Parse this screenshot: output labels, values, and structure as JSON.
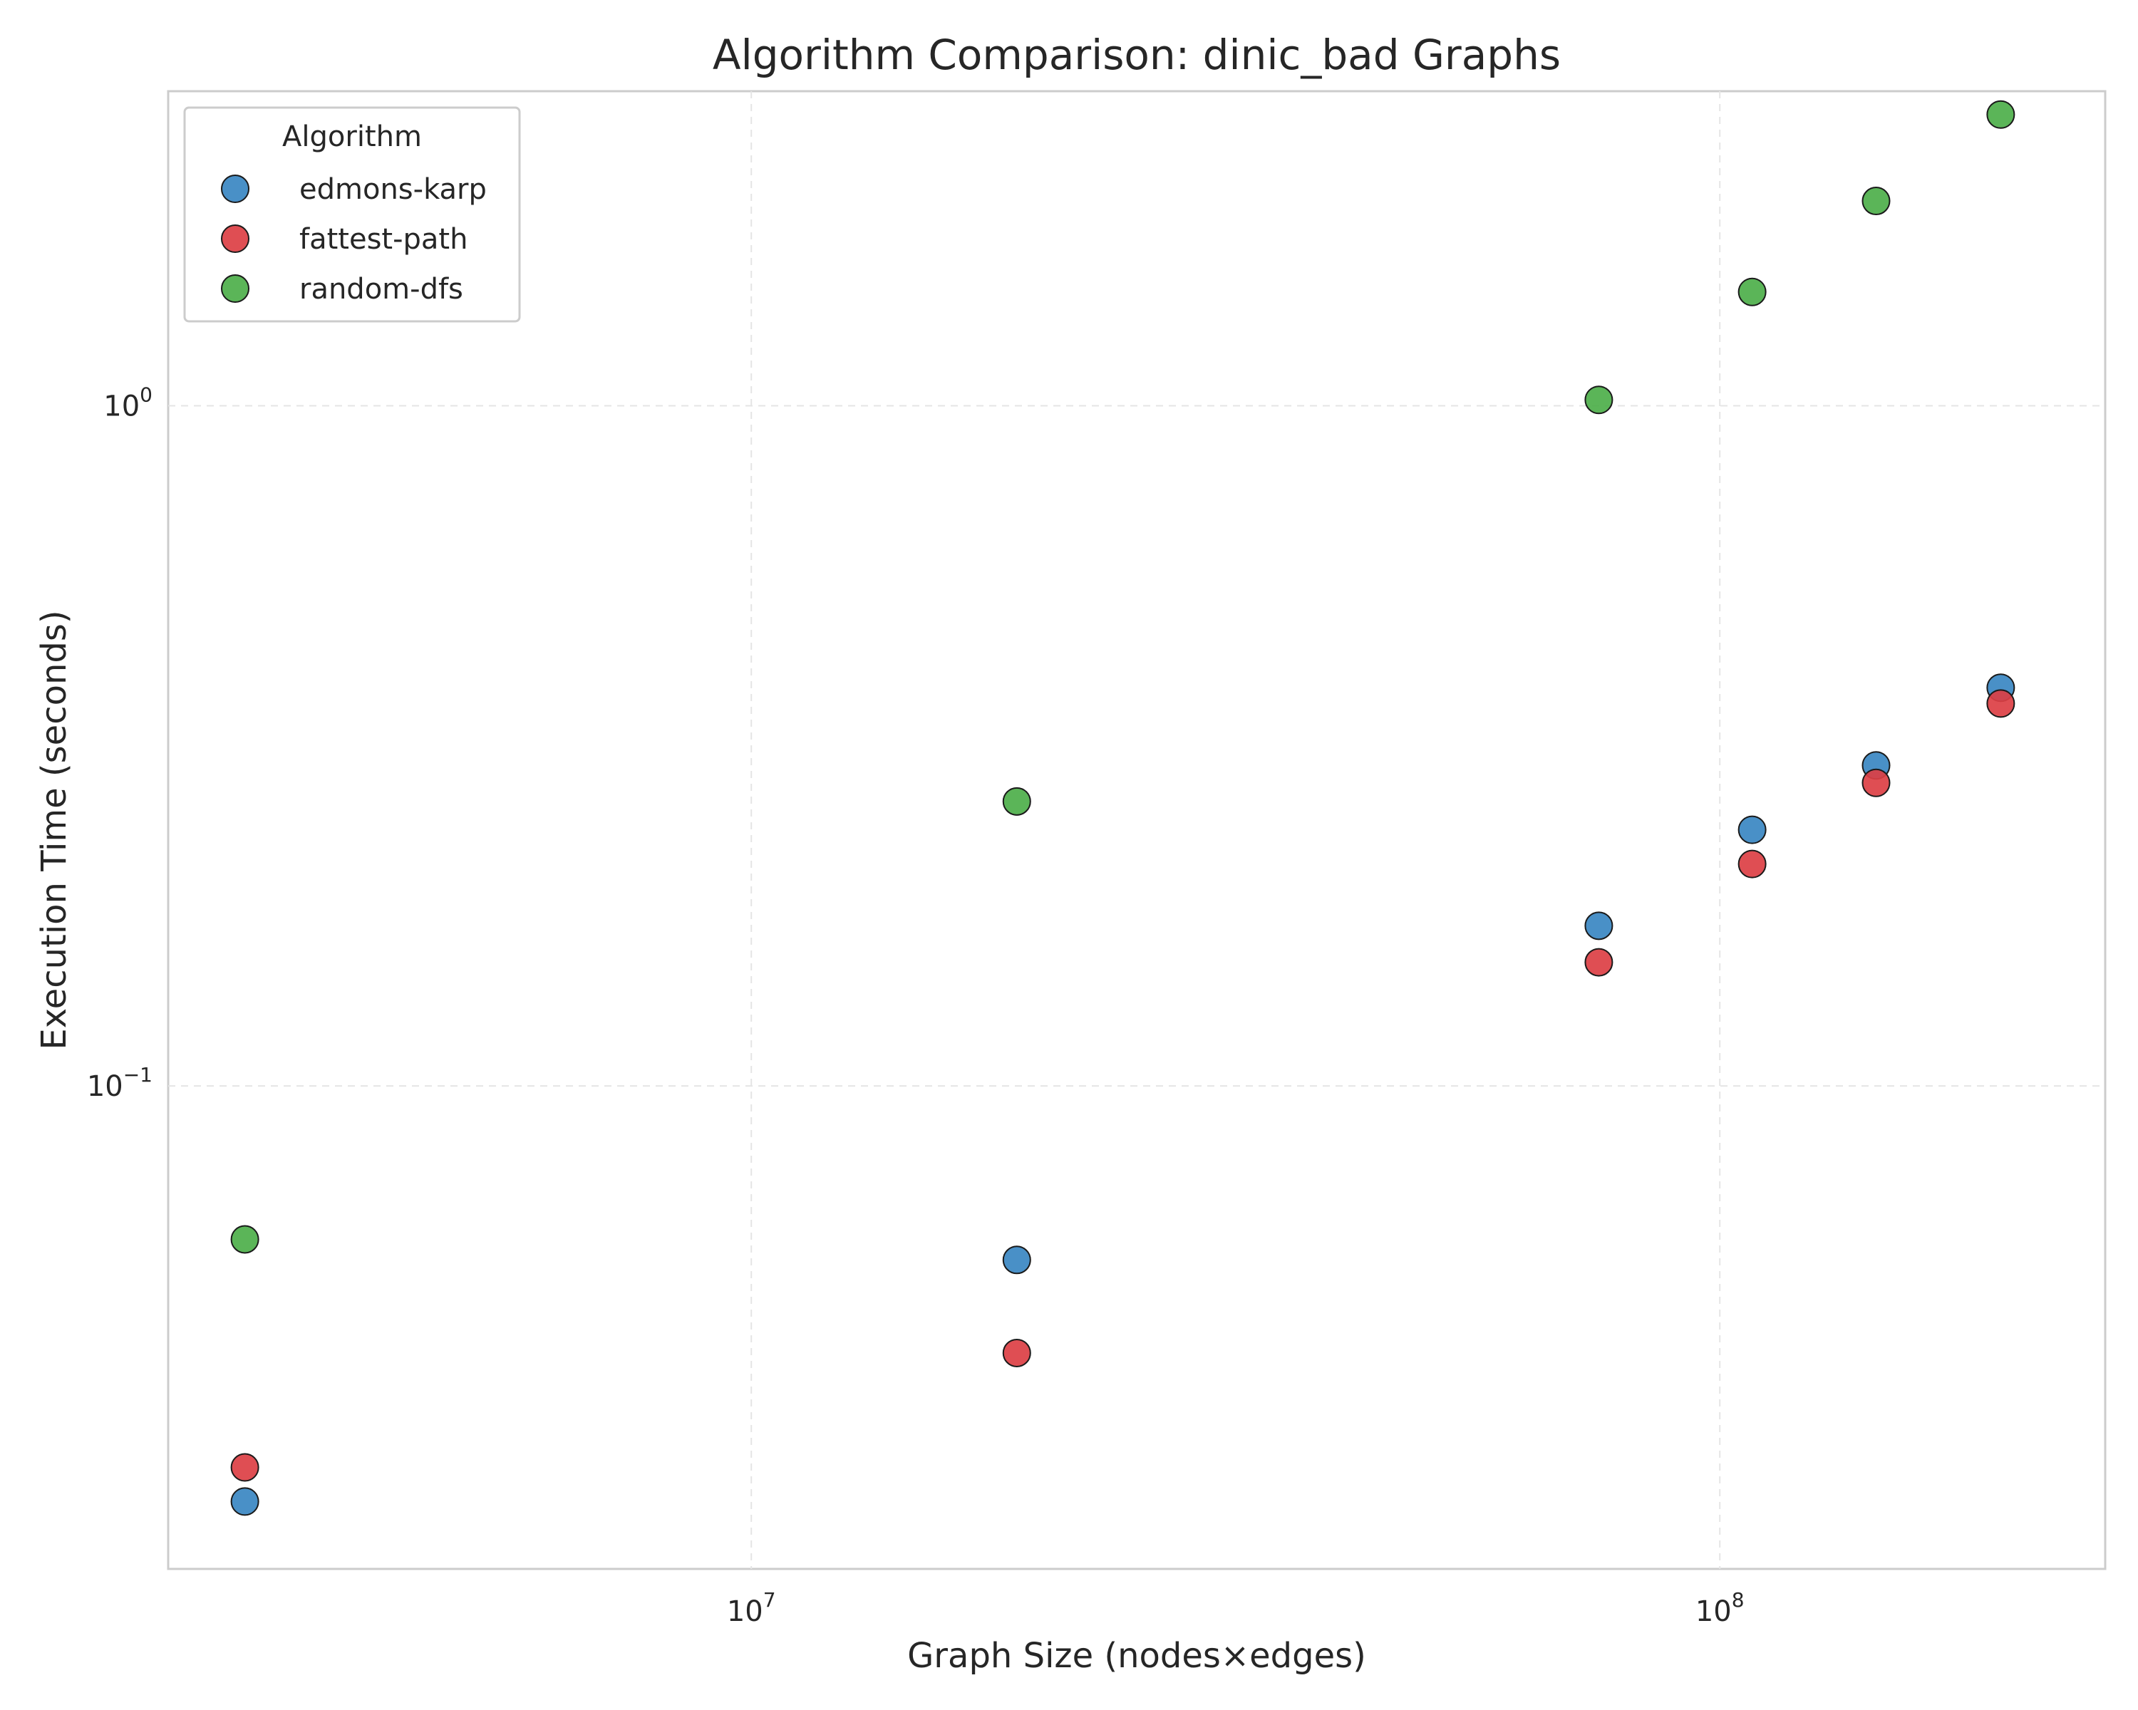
{
  "chart_data": {
    "type": "scatter",
    "title": "Algorithm Comparison: dinic_bad Graphs",
    "xlabel": "Graph Size (nodes×edges)",
    "ylabel": "Execution Time (seconds)",
    "xscale": "log",
    "yscale": "log",
    "xlim": [
      2500000,
      250000000
    ],
    "ylim": [
      0.0195,
      2.9
    ],
    "x_ticks": [
      {
        "base": "10",
        "exp": "7",
        "value": 10000000
      },
      {
        "base": "10",
        "exp": "8",
        "value": 100000000
      }
    ],
    "y_ticks": [
      {
        "base": "10",
        "exp": "−1",
        "value": 0.1
      },
      {
        "base": "10",
        "exp": "0",
        "value": 1.0
      }
    ],
    "grid": true,
    "legend": {
      "title": "Algorithm",
      "placement": "top-left"
    },
    "series": [
      {
        "name": "edmons-karp",
        "color": "#3A87C2",
        "points": [
          {
            "x": 3000000,
            "y": 0.0245
          },
          {
            "x": 18800000,
            "y": 0.0555
          },
          {
            "x": 75000000,
            "y": 0.172
          },
          {
            "x": 108000000,
            "y": 0.238
          },
          {
            "x": 145000000,
            "y": 0.296
          },
          {
            "x": 195000000,
            "y": 0.385
          }
        ]
      },
      {
        "name": "fattest-path",
        "color": "#DC3F44",
        "points": [
          {
            "x": 3000000,
            "y": 0.0275
          },
          {
            "x": 18800000,
            "y": 0.0405
          },
          {
            "x": 75000000,
            "y": 0.152
          },
          {
            "x": 108000000,
            "y": 0.212
          },
          {
            "x": 145000000,
            "y": 0.279
          },
          {
            "x": 195000000,
            "y": 0.365
          }
        ]
      },
      {
        "name": "random-dfs",
        "color": "#4DAF4A",
        "points": [
          {
            "x": 3000000,
            "y": 0.0595
          },
          {
            "x": 18800000,
            "y": 0.262
          },
          {
            "x": 75000000,
            "y": 1.02
          },
          {
            "x": 108000000,
            "y": 1.47
          },
          {
            "x": 145000000,
            "y": 2.0
          },
          {
            "x": 195000000,
            "y": 2.68
          }
        ]
      }
    ]
  }
}
